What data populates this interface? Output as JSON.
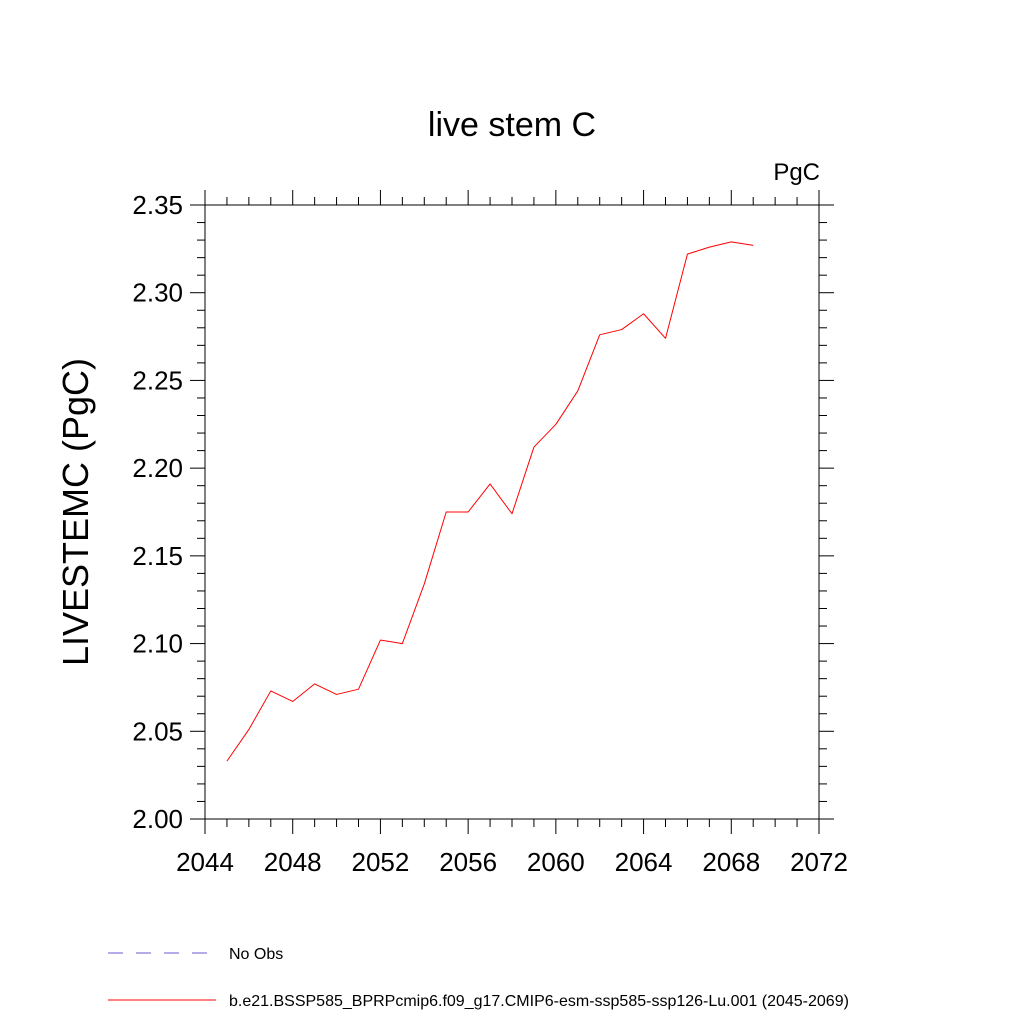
{
  "chart_data": {
    "type": "line",
    "title": "live stem C",
    "units_label": "PgC",
    "ylabel": "LIVESTEMC  (PgC)",
    "xlabel": "",
    "xlim": [
      2044,
      2072
    ],
    "ylim": [
      2.0,
      2.35
    ],
    "x_ticks": [
      2044,
      2048,
      2052,
      2056,
      2060,
      2064,
      2068,
      2072
    ],
    "x_tick_labels": [
      "2044",
      "2048",
      "2052",
      "2056",
      "2060",
      "2064",
      "2068",
      "2072"
    ],
    "y_ticks": [
      2.0,
      2.05,
      2.1,
      2.15,
      2.2,
      2.25,
      2.3,
      2.35
    ],
    "y_tick_labels": [
      "2.00",
      "2.05",
      "2.10",
      "2.15",
      "2.20",
      "2.25",
      "2.30",
      "2.35"
    ],
    "grid": false,
    "legend_position": "bottom-left",
    "series": [
      {
        "name": "b.e21.BSSP585_BPRPcmip6.f09_g17.CMIP6-esm-ssp585-ssp126-Lu.001 (2045-2069)",
        "color": "#ff0000",
        "style": "solid",
        "x": [
          2045,
          2046,
          2047,
          2048,
          2049,
          2050,
          2051,
          2052,
          2053,
          2054,
          2055,
          2056,
          2057,
          2058,
          2059,
          2060,
          2061,
          2062,
          2063,
          2064,
          2065,
          2066,
          2067,
          2068,
          2069
        ],
        "values": [
          2.033,
          2.051,
          2.073,
          2.067,
          2.077,
          2.071,
          2.074,
          2.102,
          2.1,
          2.134,
          2.175,
          2.175,
          2.191,
          2.174,
          2.212,
          2.225,
          2.244,
          2.276,
          2.279,
          2.288,
          2.274,
          2.322,
          2.326,
          2.329,
          2.327
        ]
      }
    ],
    "legend": [
      {
        "label": "No Obs",
        "color": "#6a5acd",
        "style": "dashed"
      },
      {
        "label": "b.e21.BSSP585_BPRPcmip6.f09_g17.CMIP6-esm-ssp585-ssp126-Lu.001 (2045-2069)",
        "color": "#ff0000",
        "style": "solid"
      }
    ]
  }
}
